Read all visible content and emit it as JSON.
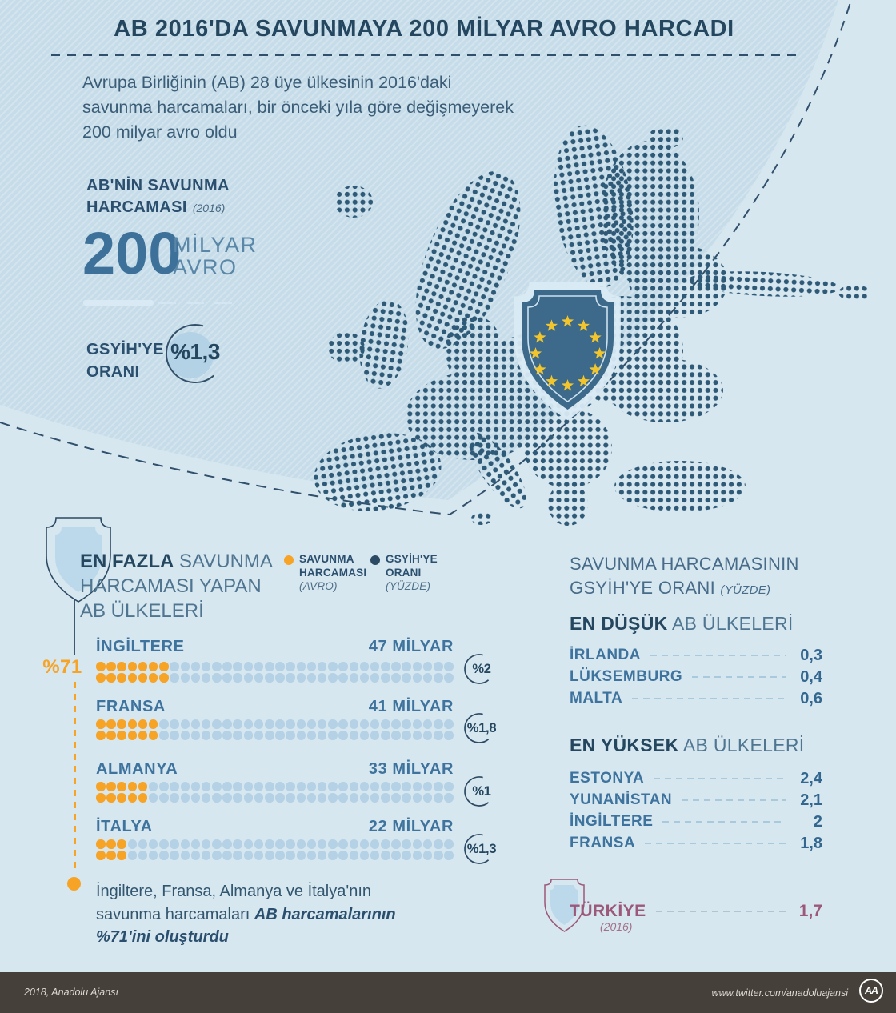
{
  "meta": {
    "title": "AB 2016'DA SAVUNMAYA 200 MİLYAR AVRO HARCADI"
  },
  "intro": {
    "line1": "Avrupa Birliğinin (AB) 28 üye ülkesinin 2016'daki",
    "line2": "savunma harcamaları, bir önceki yıla göre değişmeyerek",
    "line3": "200 milyar avro oldu"
  },
  "kpi": {
    "label1": "AB'NİN SAVUNMA",
    "label2": "HARCAMASI",
    "year": "(2016)",
    "number": "200",
    "unit1": "MİLYAR",
    "unit2": "AVRO",
    "ratio_label1": "GSYİH'YE",
    "ratio_label2": "ORANI",
    "ratio_value": "%1,3"
  },
  "spend": {
    "heading": {
      "bold": "EN FAZLA",
      "line1_rest": " SAVUNMA",
      "line2": "HARCAMASI YAPAN",
      "line3": "AB ÜLKELERİ"
    },
    "legend": [
      {
        "l1": "SAVUNMA",
        "l2": "HARCAMASI",
        "note": "(AVRO)"
      },
      {
        "l1": "GSYİH'YE",
        "l2": "ORANI",
        "note": "(YÜZDE)"
      }
    ],
    "countries": [
      {
        "name": "İNGİLTERE",
        "amount": "47 MİLYAR",
        "ratio": "%2",
        "filled": 7,
        "total": 34
      },
      {
        "name": "FRANSA",
        "amount": "41 MİLYAR",
        "ratio": "%1,8",
        "filled": 6,
        "total": 34
      },
      {
        "name": "ALMANYA",
        "amount": "33 MİLYAR",
        "ratio": "%1",
        "filled": 5,
        "total": 34
      },
      {
        "name": "İTALYA",
        "amount": "22 MİLYAR",
        "ratio": "%1,3",
        "filled": 3,
        "total": 34
      }
    ],
    "callout": {
      "badge": "%71",
      "line1": "İngiltere, Fransa, Almanya ve İtalya'nın",
      "line2_normal": "savunma harcamaları ",
      "line2_em": "AB harcamalarının",
      "line3_em": "%71'ini oluşturdu"
    }
  },
  "ratio": {
    "title1": "SAVUNMA HARCAMASININ",
    "title2": "GSYİH'YE ORANI ",
    "title_note": "(YÜZDE)",
    "lowest": {
      "bold": "EN DÜŞÜK",
      "rest": " AB ÜLKELERİ",
      "rows": [
        {
          "name": "İRLANDA",
          "value": "0,3"
        },
        {
          "name": "LÜKSEMBURG",
          "value": "0,4"
        },
        {
          "name": "MALTA",
          "value": "0,6"
        }
      ]
    },
    "highest": {
      "bold": "EN YÜKSEK",
      "rest": " AB ÜLKELERİ",
      "rows": [
        {
          "name": "ESTONYA",
          "value": "2,4"
        },
        {
          "name": "YUNANİSTAN",
          "value": "2,1"
        },
        {
          "name": "İNGİLTERE",
          "value": "2"
        },
        {
          "name": "FRANSA",
          "value": "1,8"
        }
      ]
    },
    "turkey": {
      "name": "TÜRKİYE",
      "year": "(2016)",
      "value": "1,7"
    }
  },
  "footer": {
    "left": "2018, Anadolu Ajansı",
    "right": "www.twitter.com/anadoluajansi",
    "logo": "AA"
  },
  "colors": {
    "background_light": "#d6e7f0",
    "background_hatched": "#c6dde9",
    "navy": "#2c4a63",
    "steel_blue": "#3e719a",
    "map_dot": "#2e5977",
    "orange": "#f6a326",
    "dot_light": "#b5d1e5",
    "country_blue": "#3e739e",
    "turkey_purple": "#9c5878",
    "shield_fill": "#3d6a8b",
    "star_gold": "#f3c52c",
    "footer_bg": "#45403a"
  },
  "chart_data": [
    {
      "type": "bar",
      "title": "EN FAZLA SAVUNMA HARCAMASI YAPAN AB ÜLKELERİ",
      "categories": [
        "İNGİLTERE",
        "FRANSA",
        "ALMANYA",
        "İTALYA"
      ],
      "series": [
        {
          "name": "SAVUNMA HARCAMASI (MİLYAR AVRO)",
          "values": [
            47,
            41,
            33,
            22
          ]
        },
        {
          "name": "GSYİH'YE ORANI (YÜZDE)",
          "values": [
            2,
            1.8,
            1,
            1.3
          ]
        }
      ],
      "annotation": "İngiltere, Fransa, Almanya ve İtalya'nın savunma harcamaları AB harcamalarının %71'ini oluşturdu"
    },
    {
      "type": "table",
      "title": "SAVUNMA HARCAMASININ GSYİH'YE ORANI (YÜZDE) — EN DÜŞÜK AB ÜLKELERİ",
      "categories": [
        "İRLANDA",
        "LÜKSEMBURG",
        "MALTA"
      ],
      "values": [
        0.3,
        0.4,
        0.6
      ]
    },
    {
      "type": "table",
      "title": "SAVUNMA HARCAMASININ GSYİH'YE ORANI (YÜZDE) — EN YÜKSEK AB ÜLKELERİ",
      "categories": [
        "ESTONYA",
        "YUNANİSTAN",
        "İNGİLTERE",
        "FRANSA"
      ],
      "values": [
        2.4,
        2.1,
        2,
        1.8
      ]
    },
    {
      "type": "table",
      "title": "TÜRKİYE GSYİH'YE ORANI (YÜZDE) (2016)",
      "categories": [
        "TÜRKİYE"
      ],
      "values": [
        1.7
      ]
    },
    {
      "type": "kpi",
      "title": "AB'NİN SAVUNMA HARCAMASI (2016)",
      "value": "200 MİLYAR AVRO",
      "ratio": "GSYİH'YE ORANI %1,3"
    }
  ]
}
